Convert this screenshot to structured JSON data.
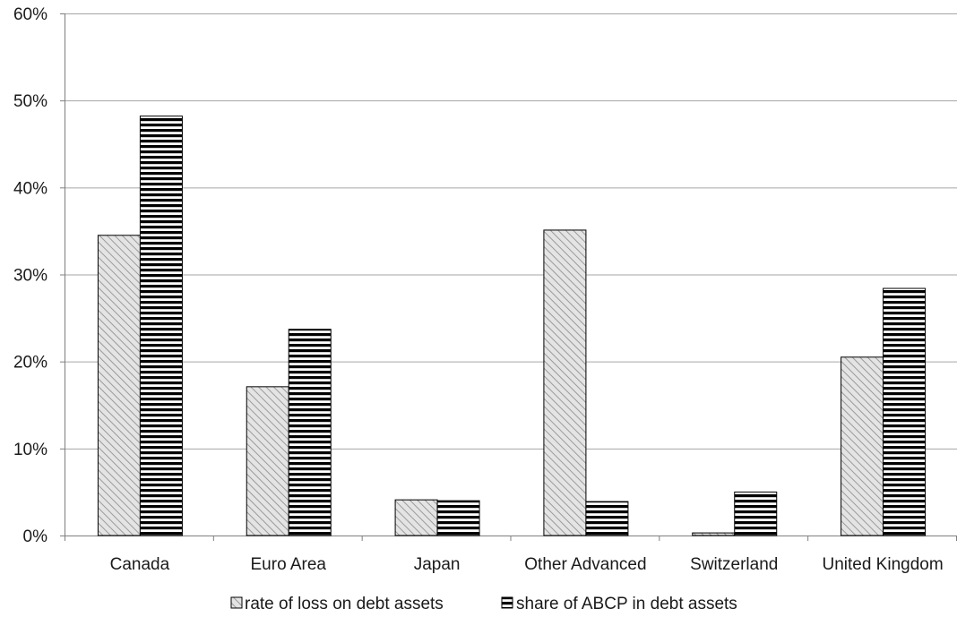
{
  "chart_data": {
    "type": "bar",
    "title": "",
    "xlabel": "",
    "ylabel": "",
    "categories": [
      "Canada",
      "Euro Area",
      "Japan",
      "Other Advanced",
      "Switzerland",
      "United Kingdom"
    ],
    "series": [
      {
        "name": "rate of loss on debt assets",
        "values": [
          34.5,
          17.1,
          4.1,
          35.1,
          0.3,
          20.5
        ],
        "pattern": "diagonal-hatch",
        "color": "#aaaaaa"
      },
      {
        "name": "share of ABCP in debt assets",
        "values": [
          48.2,
          23.7,
          4.0,
          3.9,
          5.0,
          28.4
        ],
        "pattern": "horizontal-stripes",
        "color": "#000000"
      }
    ],
    "ylim": [
      0,
      60
    ],
    "yticks": [
      0,
      10,
      20,
      30,
      40,
      50,
      60
    ],
    "ytick_format": "percent",
    "grid": true,
    "legend_position": "bottom"
  }
}
